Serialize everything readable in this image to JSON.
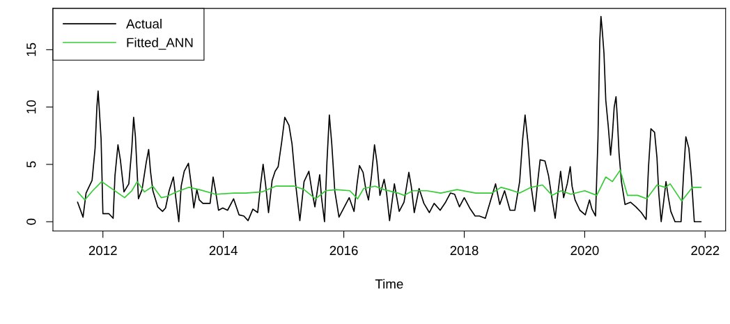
{
  "chart_data": {
    "type": "line",
    "xlabel": "Time",
    "xlim": [
      2011.17,
      2022.34
    ],
    "ylim": [
      -0.81,
      18.6
    ],
    "xticks": [
      2012,
      2014,
      2016,
      2018,
      2020,
      2022
    ],
    "yticks": [
      0,
      5,
      10,
      15
    ],
    "grid": false,
    "legend": "top left",
    "marker": "none",
    "line_style": "solid",
    "series": [
      {
        "name": "Actual",
        "color": "#000000",
        "x": [
          2011.58,
          2011.67,
          2011.72,
          2011.82,
          2011.87,
          2011.9,
          2011.92,
          2011.94,
          2011.97,
          2012.0,
          2012.1,
          2012.17,
          2012.2,
          2012.25,
          2012.29,
          2012.35,
          2012.43,
          2012.48,
          2012.51,
          2012.54,
          2012.59,
          2012.65,
          2012.72,
          2012.76,
          2012.79,
          2012.83,
          2012.91,
          2012.99,
          2013.04,
          2013.1,
          2013.17,
          2013.21,
          2013.26,
          2013.3,
          2013.35,
          2013.42,
          2013.46,
          2013.51,
          2013.56,
          2013.6,
          2013.66,
          2013.78,
          2013.83,
          2013.87,
          2013.92,
          2013.99,
          2014.07,
          2014.17,
          2014.26,
          2014.34,
          2014.41,
          2014.49,
          2014.57,
          2014.62,
          2014.66,
          2014.7,
          2014.75,
          2014.81,
          2014.86,
          2014.91,
          2014.97,
          2015.02,
          2015.09,
          2015.14,
          2015.2,
          2015.27,
          2015.34,
          2015.42,
          2015.47,
          2015.52,
          2015.6,
          2015.63,
          2015.68,
          2015.72,
          2015.76,
          2015.8,
          2015.85,
          2015.92,
          2015.99,
          2016.09,
          2016.17,
          2016.22,
          2016.26,
          2016.32,
          2016.37,
          2016.41,
          2016.46,
          2016.51,
          2016.55,
          2016.6,
          2016.67,
          2016.71,
          2016.76,
          2016.84,
          2016.92,
          2017.0,
          2017.08,
          2017.12,
          2017.17,
          2017.25,
          2017.33,
          2017.42,
          2017.5,
          2017.6,
          2017.69,
          2017.77,
          2017.84,
          2017.92,
          2018.0,
          2018.09,
          2018.18,
          2018.25,
          2018.35,
          2018.44,
          2018.52,
          2018.59,
          2018.67,
          2018.76,
          2018.84,
          2018.92,
          2018.97,
          2019.01,
          2019.06,
          2019.11,
          2019.17,
          2019.22,
          2019.26,
          2019.34,
          2019.4,
          2019.46,
          2019.51,
          2019.56,
          2019.6,
          2019.65,
          2019.71,
          2019.76,
          2019.79,
          2019.84,
          2019.92,
          2020.01,
          2020.08,
          2020.12,
          2020.18,
          2020.22,
          2020.25,
          2020.27,
          2020.29,
          2020.32,
          2020.35,
          2020.39,
          2020.43,
          2020.46,
          2020.49,
          2020.52,
          2020.54,
          2020.57,
          2020.61,
          2020.67,
          2020.76,
          2020.85,
          2020.94,
          2021.02,
          2021.06,
          2021.1,
          2021.16,
          2021.2,
          2021.23,
          2021.27,
          2021.31,
          2021.35,
          2021.39,
          2021.43,
          2021.5,
          2021.6,
          2021.64,
          2021.68,
          2021.73,
          2021.77,
          2021.82,
          2021.93
        ],
        "values": [
          1.7,
          0.4,
          2.5,
          3.6,
          6.4,
          10.0,
          11.4,
          9.8,
          7.2,
          0.7,
          0.7,
          0.3,
          4.0,
          6.7,
          5.4,
          2.6,
          3.3,
          6.4,
          9.1,
          7.4,
          2.0,
          2.8,
          5.2,
          6.3,
          4.4,
          2.7,
          1.3,
          0.9,
          1.2,
          2.7,
          3.9,
          2.1,
          0.0,
          3.1,
          4.4,
          5.1,
          3.5,
          1.2,
          2.8,
          1.9,
          1.6,
          1.6,
          3.9,
          2.7,
          1.0,
          1.2,
          1.0,
          2.0,
          0.6,
          0.5,
          0.1,
          1.1,
          0.8,
          3.3,
          5.0,
          3.3,
          0.8,
          3.6,
          4.4,
          4.8,
          7.0,
          9.1,
          8.4,
          6.8,
          3.3,
          0.1,
          3.5,
          4.4,
          2.7,
          1.3,
          4.1,
          2.1,
          0.0,
          5.2,
          9.3,
          6.8,
          2.7,
          0.4,
          1.1,
          2.1,
          0.9,
          3.3,
          4.9,
          4.3,
          2.7,
          1.9,
          4.0,
          6.7,
          5.2,
          2.3,
          3.7,
          2.5,
          0.1,
          3.3,
          0.9,
          1.7,
          4.3,
          3.1,
          0.8,
          2.9,
          1.6,
          0.8,
          1.6,
          1.0,
          1.7,
          2.5,
          2.4,
          1.3,
          2.1,
          1.2,
          0.5,
          0.5,
          0.3,
          1.9,
          3.3,
          1.5,
          2.7,
          1.0,
          1.0,
          3.5,
          7.2,
          9.3,
          6.8,
          3.1,
          0.9,
          3.5,
          5.4,
          5.3,
          4.0,
          1.9,
          0.3,
          2.7,
          4.4,
          2.1,
          3.3,
          4.8,
          3.1,
          1.9,
          1.0,
          0.6,
          1.9,
          1.1,
          0.5,
          7.2,
          15.7,
          17.9,
          16.8,
          14.7,
          10.6,
          8.4,
          5.8,
          7.6,
          10.0,
          10.9,
          9.2,
          6.0,
          3.5,
          1.5,
          1.7,
          1.3,
          0.8,
          0.2,
          4.8,
          8.1,
          7.8,
          5.6,
          2.5,
          0.0,
          1.7,
          3.5,
          2.1,
          0.9,
          0.0,
          0.0,
          4.0,
          7.4,
          6.4,
          4.0,
          0.0,
          0.0
        ]
      },
      {
        "name": "Fitted_ANN",
        "color": "#33cc33",
        "x": [
          2011.58,
          2011.7,
          2011.83,
          2011.98,
          2012.17,
          2012.36,
          2012.48,
          2012.57,
          2012.69,
          2012.83,
          2012.97,
          2013.06,
          2013.22,
          2013.43,
          2013.6,
          2013.87,
          2014.18,
          2014.37,
          2014.64,
          2014.87,
          2015.18,
          2015.34,
          2015.53,
          2015.7,
          2015.87,
          2016.1,
          2016.23,
          2016.33,
          2016.52,
          2016.67,
          2016.9,
          2017.0,
          2017.15,
          2017.38,
          2017.61,
          2017.88,
          2018.19,
          2018.46,
          2018.61,
          2018.75,
          2018.92,
          2019.11,
          2019.3,
          2019.46,
          2019.61,
          2019.77,
          2020.0,
          2020.2,
          2020.35,
          2020.46,
          2020.59,
          2020.71,
          2020.88,
          2021.03,
          2021.2,
          2021.34,
          2021.42,
          2021.61,
          2021.79,
          2021.93
        ],
        "values": [
          2.6,
          1.9,
          2.7,
          3.5,
          2.8,
          2.1,
          2.7,
          3.5,
          2.6,
          3.1,
          2.1,
          2.2,
          2.6,
          3.0,
          2.8,
          2.4,
          2.5,
          2.5,
          2.6,
          3.1,
          3.1,
          2.8,
          2.0,
          2.7,
          2.8,
          2.7,
          2.0,
          2.9,
          3.1,
          2.8,
          2.5,
          2.3,
          2.7,
          2.7,
          2.5,
          2.8,
          2.5,
          2.5,
          3.0,
          2.8,
          2.5,
          3.0,
          3.2,
          2.3,
          2.7,
          2.4,
          2.7,
          2.3,
          3.9,
          3.5,
          4.5,
          2.3,
          2.3,
          2.0,
          3.2,
          3.0,
          3.3,
          1.8,
          3.0,
          3.0
        ]
      }
    ]
  }
}
